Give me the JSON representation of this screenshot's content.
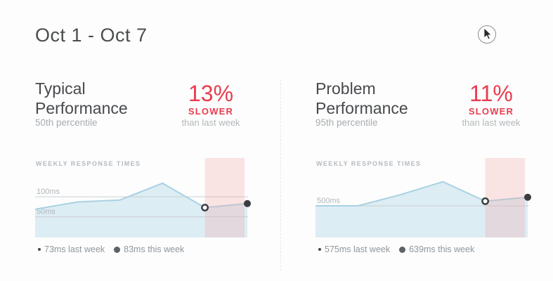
{
  "page": {
    "title": "Oct 1 - Oct 7"
  },
  "panels": [
    {
      "id": "typical-performance",
      "title_line1": "Typical",
      "title_line2": "Performance",
      "subtitle": "50th percentile",
      "delta": {
        "percent": "13%",
        "direction": "SLOWER",
        "comparison": "than last week"
      },
      "chart_label": "WEEKLY RESPONSE TIMES",
      "legend": [
        {
          "marker": "open-circle",
          "label": "73ms last week"
        },
        {
          "marker": "filled-circle",
          "label": "83ms this week"
        }
      ]
    },
    {
      "id": "problem-performance",
      "title_line1": "Problem",
      "title_line2": "Performance",
      "subtitle": "95th percentile",
      "delta": {
        "percent": "11%",
        "direction": "SLOWER",
        "comparison": "than last week"
      },
      "chart_label": "WEEKLY RESPONSE TIMES",
      "legend": [
        {
          "marker": "open-circle",
          "label": "575ms last week"
        },
        {
          "marker": "filled-circle",
          "label": "639ms this week"
        }
      ]
    }
  ],
  "chart_data": [
    {
      "type": "area",
      "title": "Weekly Response Times — Typical Performance (50th percentile)",
      "unit": "ms",
      "values_ms": [
        69,
        87,
        92,
        134,
        73,
        83
      ],
      "gridlines": [
        {
          "value_ms": 50,
          "label": "50ms"
        },
        {
          "value_ms": 100,
          "label": "100ms"
        }
      ],
      "ylim_ms": [
        0,
        197
      ],
      "highlight_from_point": 4,
      "markers": [
        {
          "point": 4,
          "style": "open",
          "value_ms": 73,
          "meaning": "last week"
        },
        {
          "point": 5,
          "style": "filled",
          "value_ms": 83,
          "meaning": "this week"
        }
      ],
      "grid": "horizontal",
      "legend_position": "bottom-left"
    },
    {
      "type": "area",
      "title": "Weekly Response Times — Problem Performance (95th percentile)",
      "unit": "ms",
      "values_ms": [
        500,
        500,
        680,
        890,
        575,
        639
      ],
      "gridlines": [
        {
          "value_ms": 500,
          "label": "500ms"
        }
      ],
      "ylim_ms": [
        0,
        1273
      ],
      "highlight_from_point": 4,
      "markers": [
        {
          "point": 4,
          "style": "open",
          "value_ms": 575,
          "meaning": "last week"
        },
        {
          "point": 5,
          "style": "filled",
          "value_ms": 639,
          "meaning": "this week"
        }
      ],
      "grid": "horizontal",
      "legend_position": "bottom-left"
    }
  ],
  "colors": {
    "background": "#fdfdfd",
    "heading_text": "#47494c",
    "muted_text": "#a9adb0",
    "accent_red": "#e93c4f",
    "chart_label_text": "#b5bac0",
    "area_fill": "#ddedf4",
    "line_stroke": "#a9d1e2",
    "gridline": "#c9ced2",
    "gridline_label": "#b0b6bb",
    "highlight_pink": "rgba(243,168,168,0.30)",
    "marker_dark": "#3a3d40",
    "legend_text": "#8f969c",
    "divider": "#e9e7e4"
  }
}
